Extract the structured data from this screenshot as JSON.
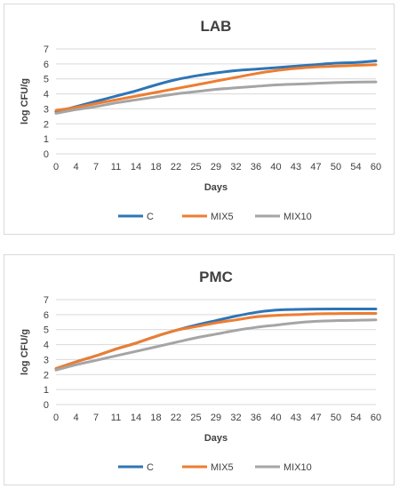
{
  "colors": {
    "C": "#2e75b6",
    "MIX5": "#ed7d31",
    "MIX10": "#a5a5a5",
    "grid": "#d9d9d9",
    "text": "#404040"
  },
  "chart_data": [
    {
      "type": "line",
      "title": "LAB",
      "xlabel": "Days",
      "ylabel": "log CFU/g",
      "ylim": [
        0,
        7
      ],
      "yticks": [
        "0",
        "1",
        "2",
        "3",
        "4",
        "5",
        "6",
        "7"
      ],
      "x": [
        0,
        4,
        7,
        11,
        14,
        18,
        22,
        25,
        29,
        32,
        36,
        40,
        43,
        47,
        50,
        54,
        60
      ],
      "xtick_labels": [
        "0",
        "4",
        "7",
        "11",
        "14",
        "18",
        "22",
        "25",
        "29",
        "32",
        "36",
        "40",
        "43",
        "47",
        "50",
        "54",
        "60"
      ],
      "grid": true,
      "legend": "bottom",
      "series": [
        {
          "name": "C",
          "values": [
            2.8,
            3.15,
            3.5,
            3.85,
            4.2,
            4.6,
            4.95,
            5.2,
            5.4,
            5.55,
            5.65,
            5.75,
            5.85,
            5.95,
            6.05,
            6.1,
            6.2
          ]
        },
        {
          "name": "MIX5",
          "values": [
            2.9,
            3.1,
            3.35,
            3.6,
            3.85,
            4.1,
            4.35,
            4.6,
            4.85,
            5.1,
            5.35,
            5.55,
            5.7,
            5.8,
            5.85,
            5.9,
            5.95
          ]
        },
        {
          "name": "MIX10",
          "values": [
            2.7,
            2.95,
            3.15,
            3.4,
            3.6,
            3.8,
            4.0,
            4.15,
            4.3,
            4.4,
            4.5,
            4.6,
            4.65,
            4.7,
            4.75,
            4.78,
            4.8
          ]
        }
      ]
    },
    {
      "type": "line",
      "title": "PMC",
      "xlabel": "Days",
      "ylabel": "log CFU/g",
      "ylim": [
        0,
        7
      ],
      "yticks": [
        "0",
        "1",
        "2",
        "3",
        "4",
        "5",
        "6",
        "7"
      ],
      "x": [
        0,
        4,
        7,
        11,
        14,
        18,
        22,
        25,
        29,
        32,
        36,
        40,
        43,
        47,
        50,
        54,
        60
      ],
      "xtick_labels": [
        "0",
        "4",
        "7",
        "11",
        "14",
        "18",
        "22",
        "25",
        "29",
        "32",
        "36",
        "40",
        "43",
        "47",
        "50",
        "54",
        "60"
      ],
      "grid": true,
      "legend": "bottom",
      "series": [
        {
          "name": "C",
          "values": [
            2.4,
            2.85,
            3.25,
            3.7,
            4.1,
            4.55,
            4.95,
            5.3,
            5.6,
            5.9,
            6.15,
            6.3,
            6.35,
            6.37,
            6.38,
            6.38,
            6.38
          ]
        },
        {
          "name": "MIX5",
          "values": [
            2.4,
            2.85,
            3.25,
            3.7,
            4.1,
            4.55,
            4.95,
            5.2,
            5.45,
            5.65,
            5.85,
            5.95,
            6.0,
            6.05,
            6.07,
            6.08,
            6.08
          ]
        },
        {
          "name": "MIX10",
          "values": [
            2.3,
            2.65,
            2.95,
            3.25,
            3.55,
            3.85,
            4.15,
            4.45,
            4.7,
            4.95,
            5.15,
            5.3,
            5.45,
            5.55,
            5.6,
            5.62,
            5.65
          ]
        }
      ]
    }
  ]
}
